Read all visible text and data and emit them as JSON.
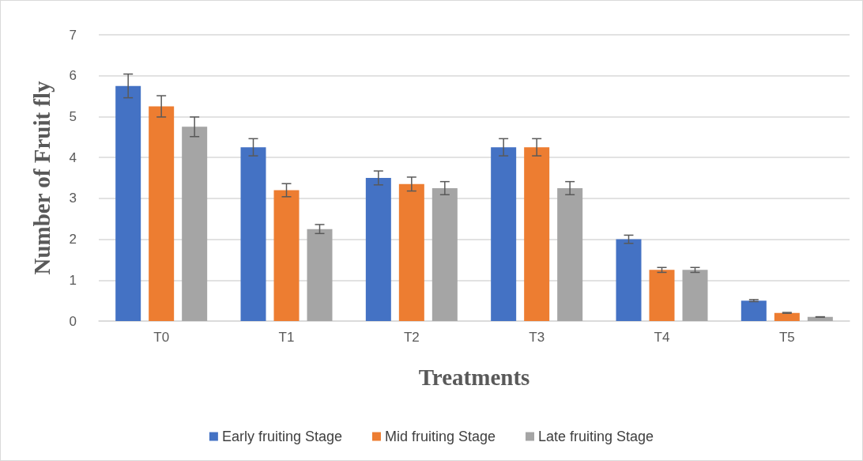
{
  "chart_data": {
    "type": "bar",
    "xlabel": "Treatments",
    "ylabel": "Number of Fruit fly",
    "categories": [
      "T0",
      "T1",
      "T2",
      "T3",
      "T4",
      "T5"
    ],
    "series": [
      {
        "name": "Early fruiting Stage",
        "color": "#4472c4",
        "values": [
          5.75,
          4.25,
          3.5,
          4.25,
          2.0,
          0.5
        ],
        "errors": [
          0.29,
          0.21,
          0.17,
          0.21,
          0.1,
          0.025
        ]
      },
      {
        "name": "Mid fruiting Stage",
        "color": "#ed7d31",
        "values": [
          5.25,
          3.2,
          3.35,
          4.25,
          1.25,
          0.2
        ],
        "errors": [
          0.26,
          0.16,
          0.17,
          0.21,
          0.06,
          0.01
        ]
      },
      {
        "name": "Late fruiting Stage",
        "color": "#a5a5a5",
        "values": [
          4.75,
          2.25,
          3.25,
          3.25,
          1.25,
          0.1
        ],
        "errors": [
          0.24,
          0.11,
          0.16,
          0.16,
          0.06,
          0.005
        ]
      }
    ],
    "ylim": [
      0,
      7
    ],
    "yticks": [
      0,
      1,
      2,
      3,
      4,
      5,
      6,
      7
    ],
    "grid": "y",
    "legend": "bottom"
  }
}
